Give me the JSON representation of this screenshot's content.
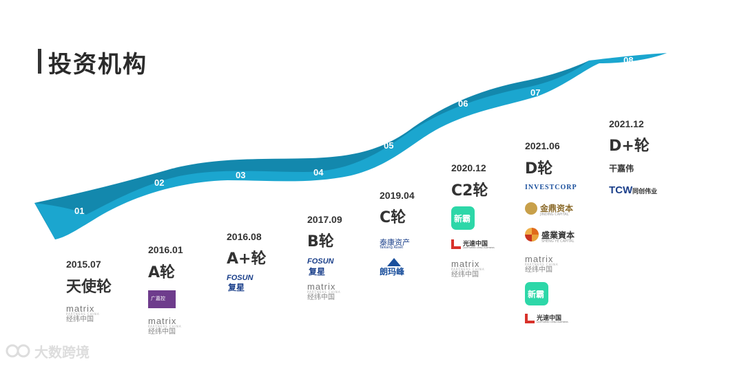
{
  "title": "投资机构",
  "stages": [
    {
      "num": "01",
      "date": "2015.07",
      "round": "天使轮"
    },
    {
      "num": "02",
      "date": "2016.01",
      "round": "A轮"
    },
    {
      "num": "03",
      "date": "2016.08",
      "round": "A+轮"
    },
    {
      "num": "04",
      "date": "2017.09",
      "round": "B轮"
    },
    {
      "num": "05",
      "date": "2019.04",
      "round": "C轮"
    },
    {
      "num": "06",
      "date": "2020.12",
      "round": "C2轮"
    },
    {
      "num": "07",
      "date": "2021.06",
      "round": "D轮"
    },
    {
      "num": "08",
      "date": "2021.12",
      "round": "D+轮"
    }
  ],
  "logos": {
    "matrix_name": "matrix",
    "matrix_sub": "PARTNERS CHINA",
    "matrix_cn": "经纬中国",
    "guangjia": "广嘉控",
    "fosun_en": "FOSUN",
    "fosun_cn": "复星",
    "taikang_cn": "泰康资产",
    "taikang_en": "Taikang Asset",
    "langmafeng": "朗玛峰",
    "xinba": "新霸",
    "lightspeed_cn": "光速中国",
    "lightspeed_en": "LIGHTSPEED CHINA PARTNERS",
    "investcorp": "INVESTCORP",
    "jinding_cn": "金鼎资本",
    "jinding_en": "JINDING CAPITAL",
    "shengye_cn": "盛業資本",
    "shengye_en": "SHENG YE CAPITAL",
    "ganjiawei": "干嘉伟",
    "tcw": "TCW",
    "tcw_cn": "同创伟业"
  },
  "watermark": "大数跨境",
  "colors": {
    "wave": "#1ba6cf",
    "wave_dark": "#1388ad",
    "text": "#333333"
  }
}
